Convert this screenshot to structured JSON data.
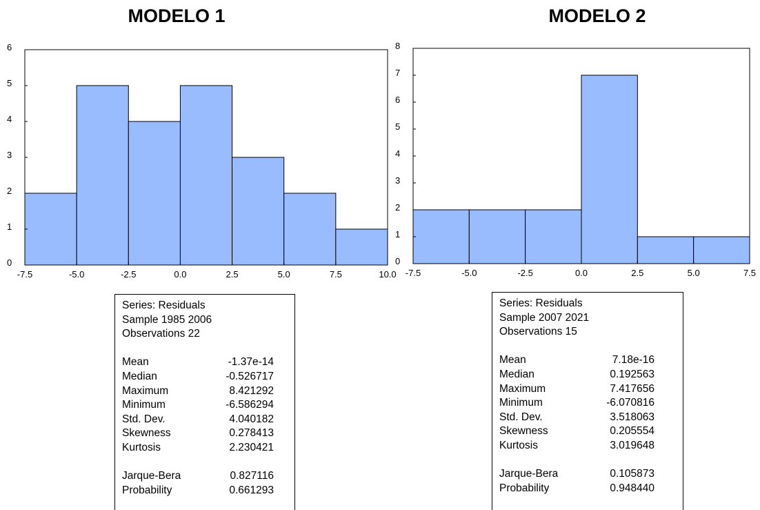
{
  "titles": {
    "left": "MODELO 1",
    "right": "MODELO 2"
  },
  "colors": {
    "bar_fill": "#99BBFF",
    "bar_stroke": "#000000"
  },
  "chart_data": [
    {
      "type": "bar",
      "title": "MODELO 1",
      "bins": [
        [
          -7.5,
          -5.0
        ],
        [
          -5.0,
          -2.5
        ],
        [
          -2.5,
          0.0
        ],
        [
          0.0,
          2.5
        ],
        [
          2.5,
          5.0
        ],
        [
          5.0,
          7.5
        ],
        [
          7.5,
          10.0
        ]
      ],
      "values": [
        2,
        5,
        4,
        5,
        3,
        2,
        1
      ],
      "xlim": [
        -7.5,
        10.0
      ],
      "ylim": [
        0,
        6
      ],
      "x_ticks": [
        "-7.5",
        "-5.0",
        "-2.5",
        "0.0",
        "2.5",
        "5.0",
        "7.5",
        "10.0"
      ],
      "y_ticks": [
        "0",
        "1",
        "2",
        "3",
        "4",
        "5",
        "6"
      ],
      "grid": false
    },
    {
      "type": "bar",
      "title": "MODELO 2",
      "bins": [
        [
          -7.5,
          -5.0
        ],
        [
          -5.0,
          -2.5
        ],
        [
          -2.5,
          0.0
        ],
        [
          0.0,
          2.5
        ],
        [
          2.5,
          5.0
        ],
        [
          5.0,
          7.5
        ]
      ],
      "values": [
        2,
        2,
        2,
        7,
        1,
        1
      ],
      "xlim": [
        -7.5,
        7.5
      ],
      "ylim": [
        0,
        8
      ],
      "x_ticks": [
        "-7.5",
        "-5.0",
        "-2.5",
        "0.0",
        "2.5",
        "5.0",
        "7.5"
      ],
      "y_ticks": [
        "0",
        "1",
        "2",
        "3",
        "4",
        "5",
        "6",
        "7",
        "8"
      ],
      "grid": false
    }
  ],
  "stats": [
    {
      "series": "Series: Residuals",
      "sample": "Sample 1985 2006",
      "observations": "Observations 22",
      "rows": [
        {
          "label": "Mean",
          "value": "-1.37e-14"
        },
        {
          "label": "Median",
          "value": "-0.526717"
        },
        {
          "label": "Maximum",
          "value": "8.421292"
        },
        {
          "label": "Minimum",
          "value": "-6.586294"
        },
        {
          "label": "Std. Dev.",
          "value": "4.040182"
        },
        {
          "label": "Skewness",
          "value": "0.278413"
        },
        {
          "label": "Kurtosis",
          "value": "2.230421"
        }
      ],
      "tests": [
        {
          "label": "Jarque-Bera",
          "value": "0.827116"
        },
        {
          "label": "Probability",
          "value": "0.661293"
        }
      ]
    },
    {
      "series": "Series: Residuals",
      "sample": "Sample 2007 2021",
      "observations": "Observations 15",
      "rows": [
        {
          "label": "Mean",
          "value": "7.18e-16"
        },
        {
          "label": "Median",
          "value": "0.192563"
        },
        {
          "label": "Maximum",
          "value": "7.417656"
        },
        {
          "label": "Minimum",
          "value": "-6.070816"
        },
        {
          "label": "Std. Dev.",
          "value": "3.518063"
        },
        {
          "label": "Skewness",
          "value": "0.205554"
        },
        {
          "label": "Kurtosis",
          "value": "3.019648"
        }
      ],
      "tests": [
        {
          "label": "Jarque-Bera",
          "value": "0.105873"
        },
        {
          "label": "Probability",
          "value": "0.948440"
        }
      ]
    }
  ]
}
